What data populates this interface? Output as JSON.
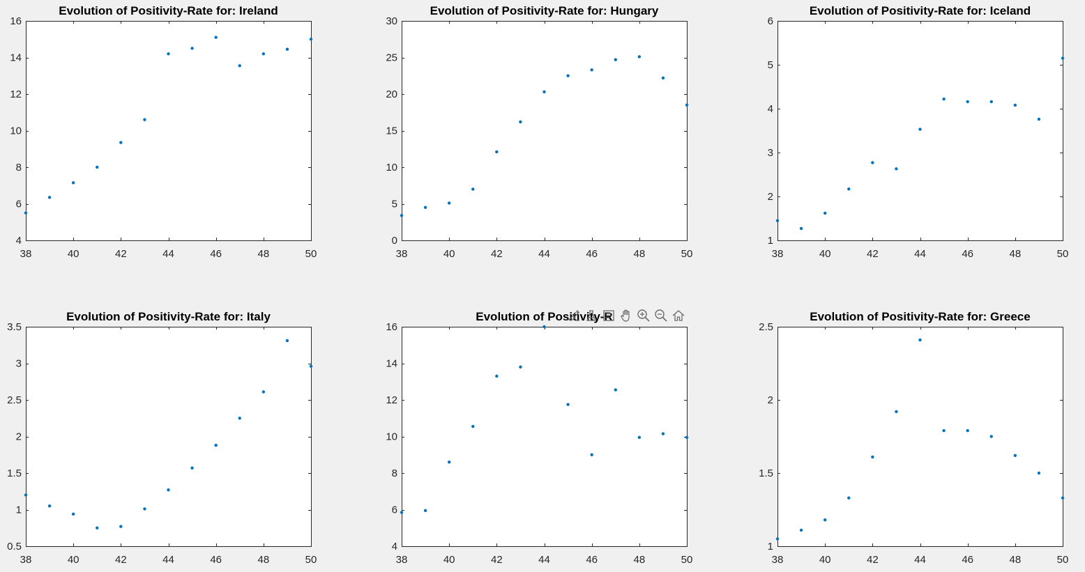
{
  "figure": {
    "background": "#f0f0f0",
    "marker_color": "#0072bd"
  },
  "toolbar": {
    "buttons": [
      {
        "name": "brush-icon"
      },
      {
        "name": "data-tips-icon"
      },
      {
        "name": "legend-icon"
      },
      {
        "name": "pan-icon"
      },
      {
        "name": "zoom-in-icon"
      },
      {
        "name": "zoom-out-icon"
      },
      {
        "name": "home-icon"
      }
    ]
  },
  "chart_data": [
    {
      "type": "scatter",
      "title": "Evolution of Positivity-Rate for: Ireland",
      "xlim": [
        38,
        50
      ],
      "ylim": [
        4,
        16
      ],
      "xticks": [
        38,
        40,
        42,
        44,
        46,
        48,
        50
      ],
      "yticks": [
        4,
        6,
        8,
        10,
        12,
        14,
        16
      ],
      "ytick_labels": [
        "4",
        "6",
        "8",
        "10",
        "12",
        "14",
        "16"
      ],
      "x": [
        38,
        39,
        40,
        41,
        42,
        43,
        44,
        45,
        46,
        47,
        48,
        49,
        50
      ],
      "y": [
        5.5,
        6.35,
        7.15,
        8.0,
        9.35,
        10.6,
        14.2,
        14.5,
        15.1,
        13.55,
        14.2,
        14.45,
        15.0
      ]
    },
    {
      "type": "scatter",
      "title": "Evolution of Positivity-Rate for: Hungary",
      "xlim": [
        38,
        50
      ],
      "ylim": [
        0,
        30
      ],
      "xticks": [
        38,
        40,
        42,
        44,
        46,
        48,
        50
      ],
      "yticks": [
        0,
        5,
        10,
        15,
        20,
        25,
        30
      ],
      "ytick_labels": [
        "0",
        "5",
        "10",
        "15",
        "20",
        "25",
        "30"
      ],
      "x": [
        38,
        39,
        40,
        41,
        42,
        43,
        44,
        45,
        46,
        47,
        48,
        49,
        50
      ],
      "y": [
        3.4,
        4.5,
        5.1,
        7.0,
        12.1,
        16.2,
        20.3,
        22.5,
        23.3,
        24.7,
        25.1,
        22.2,
        18.5
      ]
    },
    {
      "type": "scatter",
      "title": "Evolution of Positivity-Rate for: Iceland",
      "xlim": [
        38,
        50
      ],
      "ylim": [
        1,
        6
      ],
      "xticks": [
        38,
        40,
        42,
        44,
        46,
        48,
        50
      ],
      "yticks": [
        1,
        2,
        3,
        4,
        5,
        6
      ],
      "ytick_labels": [
        "1",
        "2",
        "3",
        "4",
        "5",
        "6"
      ],
      "x": [
        38,
        39,
        40,
        41,
        42,
        43,
        44,
        45,
        46,
        47,
        48,
        49,
        50
      ],
      "y": [
        1.45,
        1.27,
        1.62,
        2.17,
        2.77,
        2.63,
        3.53,
        4.22,
        4.16,
        4.16,
        4.08,
        3.76,
        5.15
      ]
    },
    {
      "type": "scatter",
      "title": "Evolution of Positivity-Rate for: Italy",
      "xlim": [
        38,
        50
      ],
      "ylim": [
        0.5,
        3.5
      ],
      "xticks": [
        38,
        40,
        42,
        44,
        46,
        48,
        50
      ],
      "yticks": [
        0.5,
        1,
        1.5,
        2,
        2.5,
        3,
        3.5
      ],
      "ytick_labels": [
        "0.5",
        "1",
        "1.5",
        "2",
        "2.5",
        "3",
        "3.5"
      ],
      "x": [
        38,
        39,
        40,
        41,
        42,
        43,
        44,
        45,
        46,
        47,
        48,
        49,
        50
      ],
      "y": [
        1.2,
        1.05,
        0.94,
        0.75,
        0.77,
        1.01,
        1.27,
        1.57,
        1.88,
        2.25,
        2.61,
        3.31,
        2.96
      ]
    },
    {
      "type": "scatter",
      "title": "Evolution of Positivity-R",
      "xlim": [
        38,
        50
      ],
      "ylim": [
        4,
        16
      ],
      "xticks": [
        38,
        40,
        42,
        44,
        46,
        48,
        50
      ],
      "yticks": [
        4,
        6,
        8,
        10,
        12,
        14,
        16
      ],
      "ytick_labels": [
        "4",
        "6",
        "8",
        "10",
        "12",
        "14",
        "16"
      ],
      "x": [
        38,
        39,
        40,
        41,
        42,
        43,
        44,
        45,
        46,
        47,
        48,
        49,
        50
      ],
      "y": [
        5.85,
        5.95,
        8.6,
        10.55,
        13.3,
        13.8,
        16.0,
        11.75,
        9.0,
        12.55,
        9.95,
        10.15,
        9.95
      ]
    },
    {
      "type": "scatter",
      "title": "Evolution of Positivity-Rate for: Greece",
      "xlim": [
        38,
        50
      ],
      "ylim": [
        1,
        2.5
      ],
      "xticks": [
        38,
        40,
        42,
        44,
        46,
        48,
        50
      ],
      "yticks": [
        1,
        1.5,
        2,
        2.5
      ],
      "ytick_labels": [
        "1",
        "1.5",
        "2",
        "2.5"
      ],
      "x": [
        38,
        39,
        40,
        41,
        42,
        43,
        44,
        45,
        46,
        47,
        48,
        49,
        50
      ],
      "y": [
        1.05,
        1.11,
        1.18,
        1.33,
        1.61,
        1.92,
        2.41,
        1.79,
        1.79,
        1.75,
        1.62,
        1.5,
        1.33
      ]
    }
  ]
}
